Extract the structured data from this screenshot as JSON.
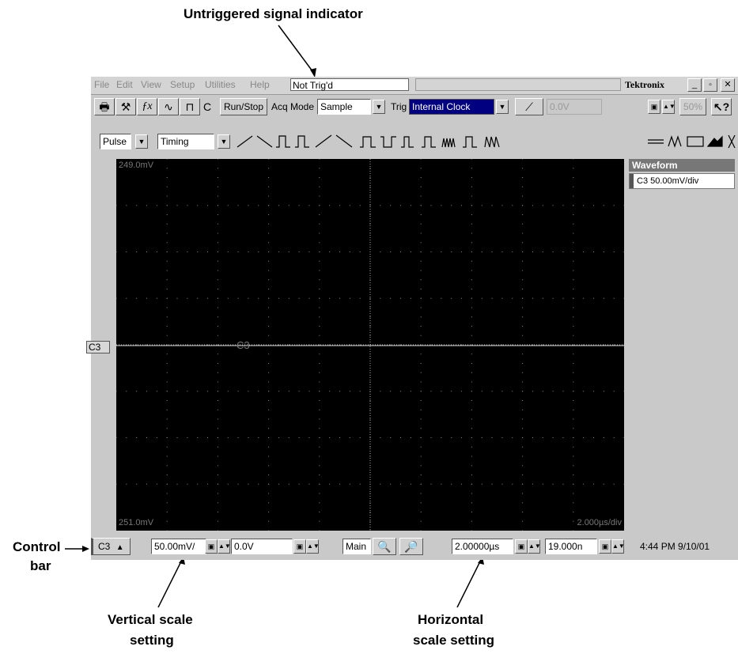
{
  "callouts": {
    "top": "Untriggered signal indicator",
    "control_bar_1": "Control",
    "control_bar_2": "bar",
    "vertical_1": "Vertical scale",
    "vertical_2": "setting",
    "horizontal_1": "Horizontal",
    "horizontal_2": "scale setting"
  },
  "menubar": {
    "items": [
      "File",
      "Edit",
      "View",
      "Setup",
      "Utilities",
      "Help"
    ],
    "status": "Not Trig'd",
    "brand": "Tektronix"
  },
  "toolbar": {
    "c_label": "C",
    "runstop": "Run/Stop",
    "acq_label": "Acq Mode",
    "acq_value": "Sample",
    "trig_label": "Trig",
    "trig_value": "Internal Clock",
    "level": "0.0V",
    "percent": "50%"
  },
  "toolbar2": {
    "pulse": "Pulse",
    "timing": "Timing"
  },
  "screen": {
    "top_label": "249.0mV",
    "bottom_label": "251.0mV",
    "timebase": "2.000µs/div",
    "trace_label": "C3",
    "marker": "C3"
  },
  "panel": {
    "title": "Waveform",
    "item": "C3 50.00mV/div"
  },
  "controlbar": {
    "channel": "C3",
    "vscale": "50.00mV/",
    "offset": "0.0V",
    "main": "Main",
    "hscale": "2.00000µs",
    "hpos": "19.000n",
    "clock": "4:44 PM 9/10/01"
  }
}
